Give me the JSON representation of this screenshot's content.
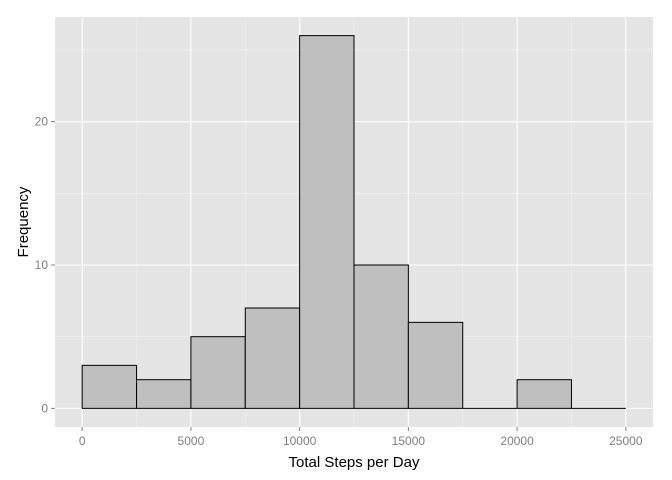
{
  "chart_data": {
    "type": "bar",
    "xlabel": "Total Steps per Day",
    "ylabel": "Frequency",
    "xlim": [
      -1250,
      26250
    ],
    "ylim": [
      -1.3,
      27.3
    ],
    "bins": [
      {
        "start": 0,
        "end": 2500,
        "count": 3
      },
      {
        "start": 2500,
        "end": 5000,
        "count": 2
      },
      {
        "start": 5000,
        "end": 7500,
        "count": 5
      },
      {
        "start": 7500,
        "end": 10000,
        "count": 7
      },
      {
        "start": 10000,
        "end": 12500,
        "count": 26
      },
      {
        "start": 12500,
        "end": 15000,
        "count": 10
      },
      {
        "start": 15000,
        "end": 17500,
        "count": 6
      },
      {
        "start": 17500,
        "end": 20000,
        "count": 0
      },
      {
        "start": 20000,
        "end": 22500,
        "count": 2
      },
      {
        "start": 22500,
        "end": 25000,
        "count": 0
      }
    ],
    "x_ticks": [
      "0",
      "5000",
      "10000",
      "15000",
      "20000",
      "25000"
    ],
    "y_ticks": [
      "0",
      "10",
      "20"
    ],
    "grid": true,
    "colors": {
      "panel_background": "#e5e5e5",
      "grid_major": "#ffffff",
      "grid_minor": "#f2f2f2",
      "bar_fill": "#bfbfbf",
      "bar_stroke": "#000000",
      "tick_text": "#7f7f7f"
    }
  }
}
